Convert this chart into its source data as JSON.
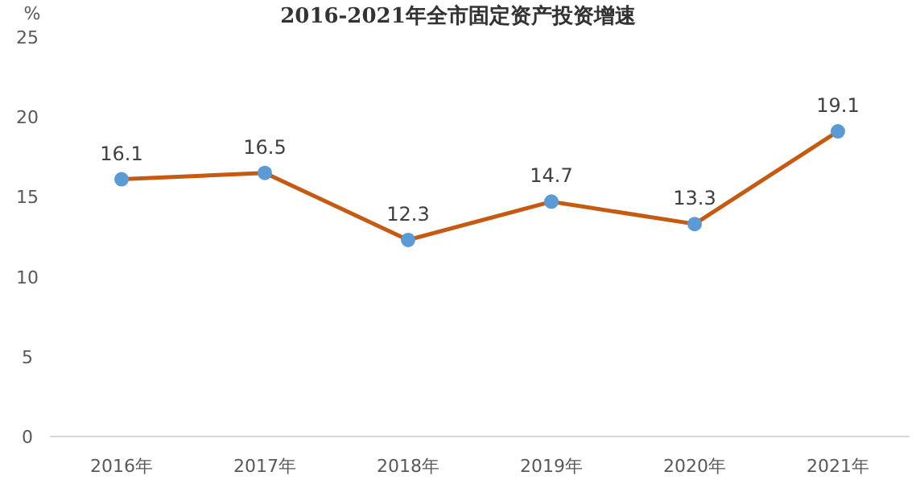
{
  "chart_data": {
    "type": "line",
    "title": "2016-2021年全市固定资产投资增速",
    "ylabel": "%",
    "categories": [
      "2016年",
      "2017年",
      "2018年",
      "2019年",
      "2020年",
      "2021年"
    ],
    "series": [
      {
        "color": "#c55a11",
        "values": [
          16.1,
          16.5,
          12.3,
          14.7,
          13.3,
          19.1
        ]
      }
    ],
    "ylim": [
      0,
      25
    ],
    "yticks": [
      0,
      5,
      10,
      15,
      20,
      25
    ],
    "grid": false,
    "marker": "circle",
    "line_style": "solid",
    "data_labels": true
  }
}
